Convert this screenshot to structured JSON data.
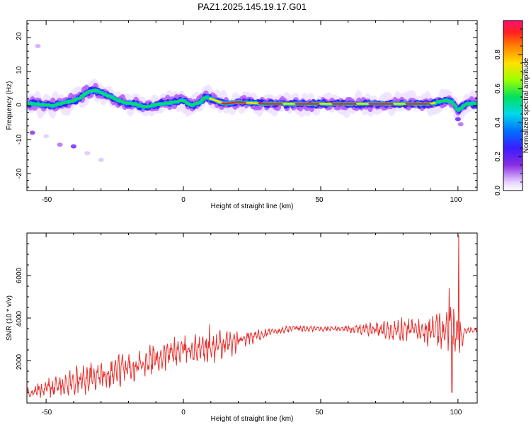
{
  "figure": {
    "title": "PAZ1.2025.145.19.17.G01"
  },
  "chart_data": [
    {
      "type": "heatmap",
      "xlabel": "Height of straight line (km)",
      "ylabel": "Frequency (Hz)",
      "xlim": [
        -57,
        107
      ],
      "ylim": [
        -25,
        25
      ],
      "xticks": [
        "-50",
        "0",
        "50",
        "100"
      ],
      "yticks": [
        "20",
        "10",
        "0",
        "-10",
        "-20"
      ],
      "ridge_frequency": {
        "x": [
          -55,
          -48,
          -42,
          -38,
          -35,
          -32,
          -28,
          -22,
          -18,
          -14,
          -12,
          -8,
          -4,
          0,
          3,
          6,
          8,
          10,
          15,
          20,
          30,
          40,
          50,
          60,
          70,
          80,
          90,
          95,
          98,
          100,
          103,
          107
        ],
        "y": [
          0.5,
          0,
          1,
          2,
          4,
          4.5,
          3,
          1,
          0.5,
          -0.5,
          0,
          0.5,
          1,
          1.5,
          0,
          1,
          2.5,
          2,
          0.5,
          1,
          0.5,
          0.5,
          0.5,
          0.5,
          0.5,
          0.5,
          0.5,
          1.5,
          1,
          -1.5,
          0.5,
          0.5
        ]
      },
      "colorbar": {
        "label": "Normalized spectral amplitude",
        "ticks": [
          "0.0",
          "0.2",
          "0.4",
          "0.6",
          "0.8"
        ],
        "range": [
          0,
          1
        ]
      }
    },
    {
      "type": "line",
      "xlabel": "Height of straight line (km)",
      "ylabel": "SNR (10 * v/v)",
      "xlim": [
        -57,
        107
      ],
      "ylim": [
        0,
        8000
      ],
      "xticks": [
        "-50",
        "0",
        "50",
        "100"
      ],
      "yticks": [
        "2000",
        "4000",
        "6000"
      ],
      "color": "#e8312e",
      "envelope": {
        "x": [
          -57,
          -50,
          -40,
          -30,
          -20,
          -10,
          0,
          10,
          20,
          30,
          40,
          50,
          60,
          70,
          80,
          90,
          95,
          100,
          103,
          107
        ],
        "mean": [
          400,
          700,
          1000,
          1300,
          1700,
          2100,
          2500,
          2600,
          2900,
          3300,
          3500,
          3500,
          3500,
          3450,
          3450,
          3400,
          3300,
          3200,
          3450,
          3450
        ],
        "amp": [
          300,
          450,
          650,
          700,
          750,
          700,
          600,
          700,
          500,
          200,
          150,
          120,
          150,
          350,
          500,
          650,
          900,
          1500,
          150,
          100
        ]
      },
      "spikes": [
        {
          "x": 100.2,
          "y": 7900
        },
        {
          "x": 97.8,
          "y": 500
        },
        {
          "x": 96.8,
          "y": 5400
        },
        {
          "x": 9.5,
          "y": 3700
        }
      ]
    }
  ]
}
